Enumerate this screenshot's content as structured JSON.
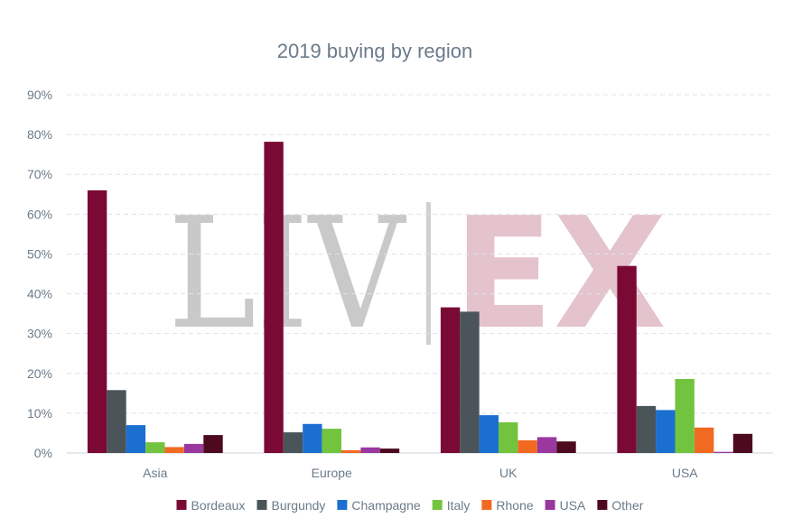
{
  "chart_data": {
    "type": "bar",
    "title": "2019 buying by region",
    "categories": [
      "Asia",
      "Europe",
      "UK",
      "USA"
    ],
    "series": [
      {
        "name": "Bordeaux",
        "color": "#7a0a34",
        "values": [
          66.0,
          78.2,
          36.6,
          47.0
        ]
      },
      {
        "name": "Burgundy",
        "color": "#4a5459",
        "values": [
          15.8,
          5.2,
          35.5,
          11.8
        ]
      },
      {
        "name": "Champagne",
        "color": "#1b6fd1",
        "values": [
          7.0,
          7.3,
          9.5,
          10.8
        ]
      },
      {
        "name": "Italy",
        "color": "#72c43f",
        "values": [
          2.7,
          6.1,
          7.7,
          18.6
        ]
      },
      {
        "name": "Rhone",
        "color": "#f26a21",
        "values": [
          1.5,
          0.7,
          3.2,
          6.4
        ]
      },
      {
        "name": "USA",
        "color": "#99389e",
        "values": [
          2.3,
          1.4,
          4.0,
          0.3
        ]
      },
      {
        "name": "Other",
        "color": "#4d0a1f",
        "values": [
          4.5,
          1.1,
          2.9,
          4.8
        ]
      }
    ],
    "ylim": [
      0,
      90
    ],
    "yticks": [
      0,
      10,
      20,
      30,
      40,
      50,
      60,
      70,
      80,
      90
    ],
    "ytick_suffix": "%",
    "grid": true,
    "legend_position": "bottom",
    "xlabel": "",
    "ylabel": ""
  },
  "watermark": {
    "left": "LIV",
    "right": "EX",
    "left_color": "#c9c9c9",
    "right_color": "#e4c3cc"
  }
}
